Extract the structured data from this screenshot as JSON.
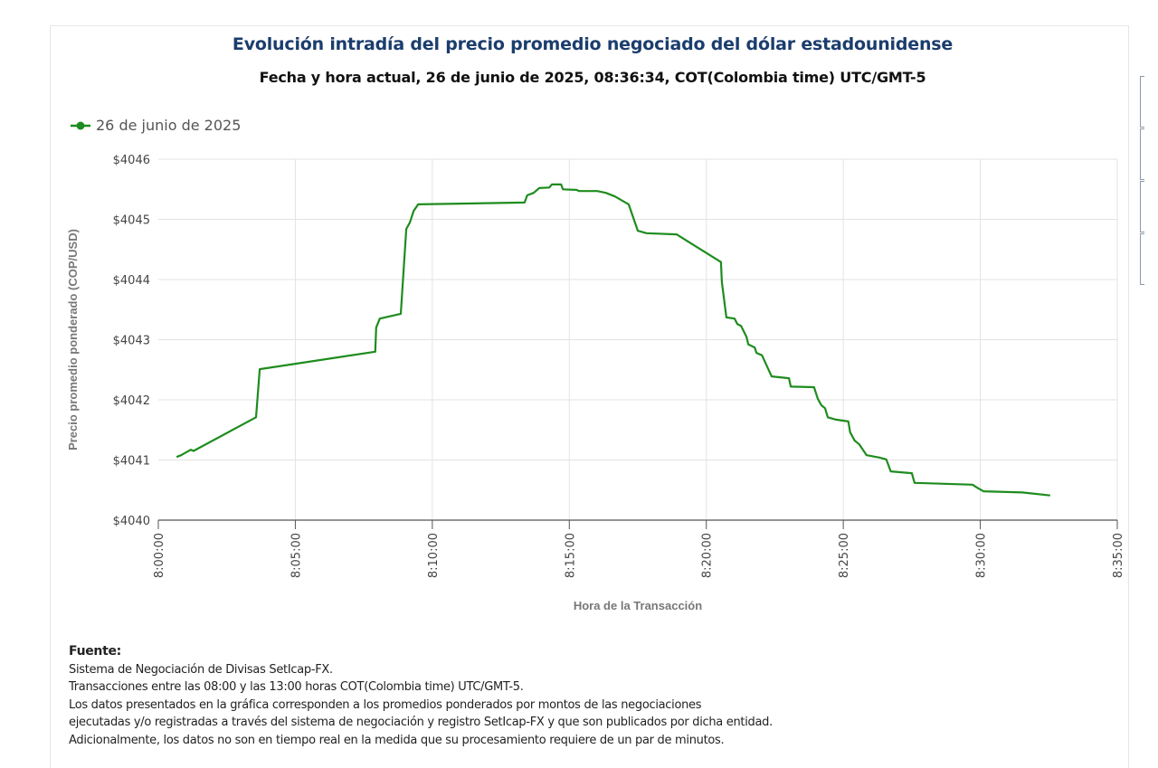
{
  "title": "Evolución intradía del precio promedio negociado del dólar estadounidense",
  "subtitle": "Fecha y hora actual, 26 de junio de 2025, 08:36:34, COT(Colombia time) UTC/GMT-5",
  "footer": {
    "heading": "Fuente:",
    "lines": [
      "Sistema de Negociación de Divisas SetIcap-FX.",
      "Transacciones entre las 08:00 y las 13:00 horas COT(Colombia time) UTC/GMT-5.",
      "Los datos presentados en la gráfica corresponden a los promedios ponderados por montos de las negociaciones",
      "ejecutadas y/o registradas a través del sistema de negociación y registro SetIcap-FX y que son publicados por dicha entidad.",
      "Adicionalmente, los datos no son en tiempo real en la medida que su procesamiento requiere de un par de minutos."
    ]
  },
  "chart_data": {
    "type": "line",
    "title": "Evolución intradía del precio promedio negociado del dólar estadounidense",
    "xlabel": "Hora de la Transacción",
    "ylabel": "Precio promedio ponderado (COP/USD)",
    "xlim": [
      "8:00:00",
      "8:35:00"
    ],
    "ylim": [
      4040,
      4046
    ],
    "x_ticks": [
      "8:00:00",
      "8:05:00",
      "8:10:00",
      "8:15:00",
      "8:20:00",
      "8:25:00",
      "8:30:00",
      "8:35:00"
    ],
    "y_ticks": [
      "$4040",
      "$4041",
      "$4042",
      "$4043",
      "$4044",
      "$4045",
      "$4046"
    ],
    "grid": true,
    "legend": "top-left",
    "series": [
      {
        "name": "26 de junio de 2025",
        "color": "#1e8c1e",
        "points": [
          [
            "8:00:40",
            4041.05
          ],
          [
            "8:00:50",
            4041.08
          ],
          [
            "8:01:11",
            4041.17
          ],
          [
            "8:01:17",
            4041.15
          ],
          [
            "8:03:34",
            4041.71
          ],
          [
            "8:03:42",
            4042.51
          ],
          [
            "8:07:55",
            4042.8
          ],
          [
            "8:07:57",
            4043.2
          ],
          [
            "8:08:05",
            4043.35
          ],
          [
            "8:08:51",
            4043.43
          ],
          [
            "8:09:03",
            4044.84
          ],
          [
            "8:09:11",
            4044.95
          ],
          [
            "8:09:19",
            4045.14
          ],
          [
            "8:09:29",
            4045.25
          ],
          [
            "8:13:22",
            4045.28
          ],
          [
            "8:13:28",
            4045.4
          ],
          [
            "8:13:42",
            4045.44
          ],
          [
            "8:13:54",
            4045.52
          ],
          [
            "8:14:16",
            4045.53
          ],
          [
            "8:14:22",
            4045.58
          ],
          [
            "8:14:42",
            4045.58
          ],
          [
            "8:14:46",
            4045.5
          ],
          [
            "8:15:16",
            4045.49
          ],
          [
            "8:15:21",
            4045.47
          ],
          [
            "8:16:01",
            4045.47
          ],
          [
            "8:16:20",
            4045.44
          ],
          [
            "8:16:40",
            4045.38
          ],
          [
            "8:17:10",
            4045.25
          ],
          [
            "8:17:30",
            4044.81
          ],
          [
            "8:17:49",
            4044.77
          ],
          [
            "8:18:55",
            4044.75
          ],
          [
            "8:20:32",
            4044.29
          ],
          [
            "8:20:34",
            4043.96
          ],
          [
            "8:20:44",
            4043.37
          ],
          [
            "8:21:02",
            4043.35
          ],
          [
            "8:21:08",
            4043.26
          ],
          [
            "8:21:16",
            4043.23
          ],
          [
            "8:21:28",
            4043.05
          ],
          [
            "8:21:32",
            4042.92
          ],
          [
            "8:21:46",
            4042.87
          ],
          [
            "8:21:50",
            4042.78
          ],
          [
            "8:22:02",
            4042.74
          ],
          [
            "8:22:23",
            4042.39
          ],
          [
            "8:23:01",
            4042.36
          ],
          [
            "8:23:05",
            4042.22
          ],
          [
            "8:23:56",
            4042.21
          ],
          [
            "8:24:04",
            4042.02
          ],
          [
            "8:24:12",
            4041.91
          ],
          [
            "8:24:20",
            4041.86
          ],
          [
            "8:24:26",
            4041.71
          ],
          [
            "8:24:44",
            4041.67
          ],
          [
            "8:25:11",
            4041.64
          ],
          [
            "8:25:15",
            4041.46
          ],
          [
            "8:25:25",
            4041.32
          ],
          [
            "8:25:35",
            4041.26
          ],
          [
            "8:25:51",
            4041.08
          ],
          [
            "8:26:19",
            4041.04
          ],
          [
            "8:26:34",
            4041.01
          ],
          [
            "8:26:44",
            4040.81
          ],
          [
            "8:27:30",
            4040.78
          ],
          [
            "8:27:36",
            4040.62
          ],
          [
            "8:29:43",
            4040.59
          ],
          [
            "8:29:53",
            4040.54
          ],
          [
            "8:30:07",
            4040.48
          ],
          [
            "8:31:32",
            4040.46
          ],
          [
            "8:32:33",
            4040.41
          ]
        ]
      }
    ]
  }
}
